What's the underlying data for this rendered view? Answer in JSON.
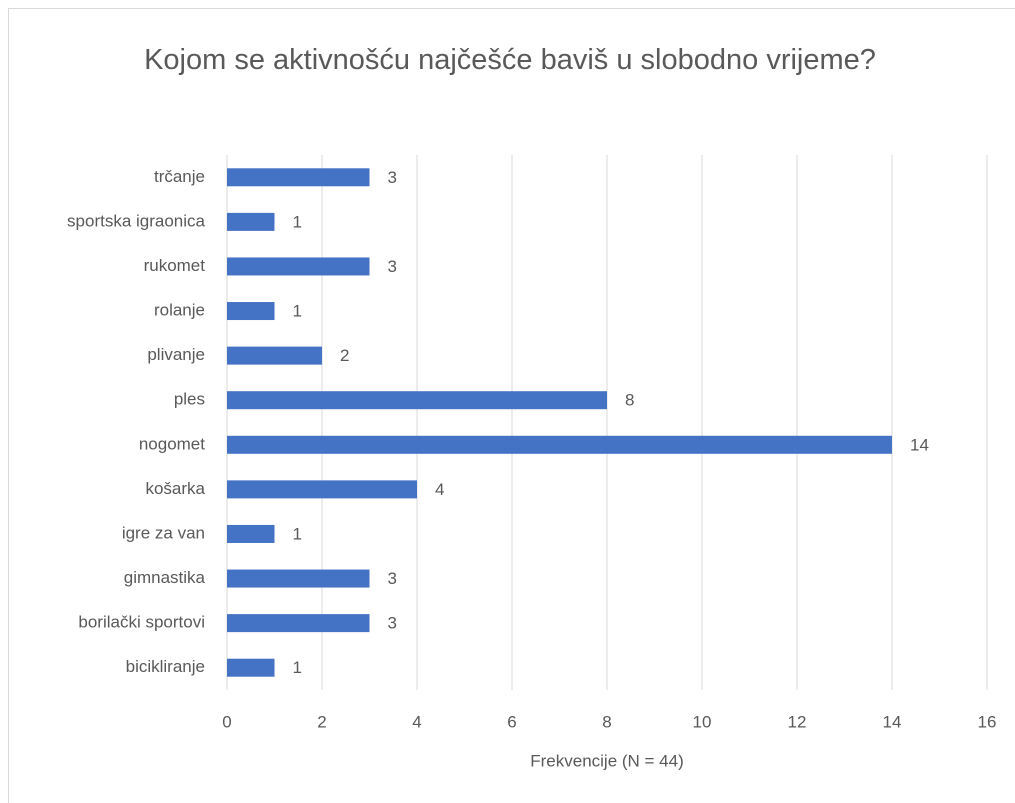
{
  "chart_data": {
    "type": "bar",
    "orientation": "horizontal",
    "title": "Kojom se aktivnošću najčešće baviš u slobodno vrijeme?",
    "categories": [
      "trčanje",
      "sportska igraonica",
      "rukomet",
      "rolanje",
      "plivanje",
      "ples",
      "nogomet",
      "košarka",
      "igre za van",
      "gimnastika",
      "borilački sportovi",
      "bicikliranje"
    ],
    "values": [
      3,
      1,
      3,
      1,
      2,
      8,
      14,
      4,
      1,
      3,
      3,
      1
    ],
    "color": "#4472c4",
    "xlabel": "Frekvencije (N = 44)",
    "xlim": [
      0,
      16
    ],
    "xticks": [
      0,
      2,
      4,
      6,
      8,
      10,
      12,
      14,
      16
    ],
    "grid": true
  }
}
